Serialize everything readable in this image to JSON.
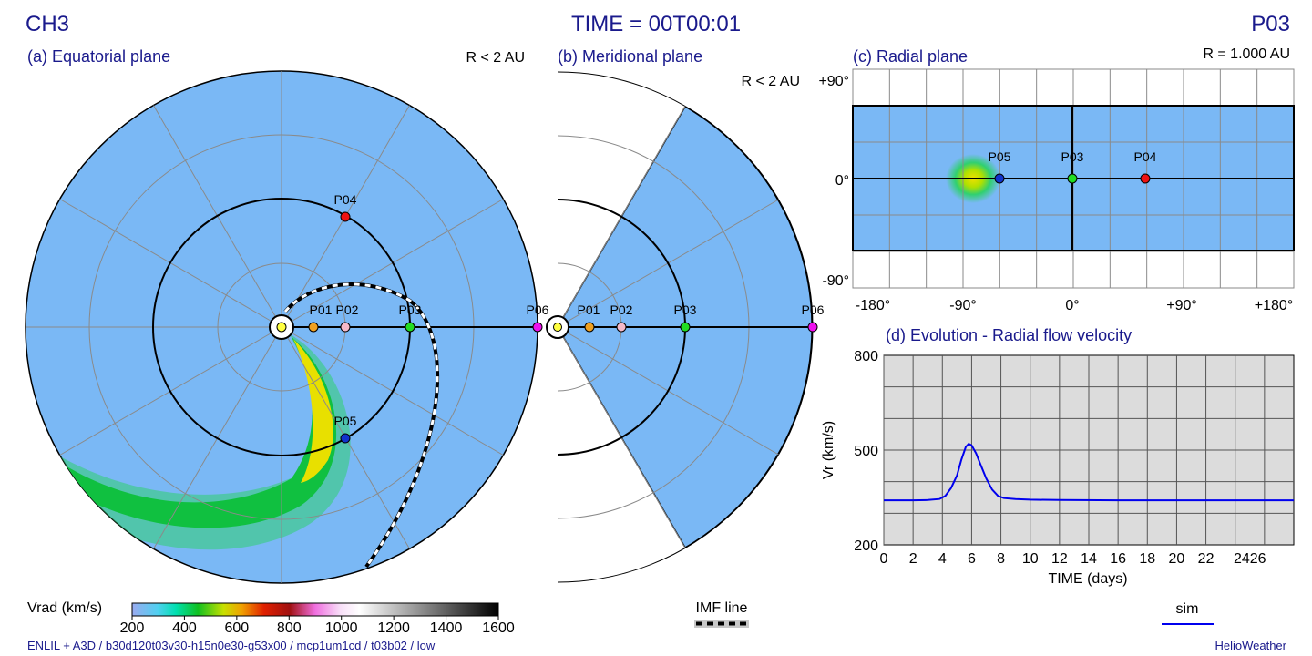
{
  "header": {
    "left_title": "CH3",
    "center_title": "TIME = 00T00:01",
    "right_title": "P03"
  },
  "panel_a": {
    "title": "(a) Equatorial plane",
    "range": "R < 2 AU",
    "probe_labels": [
      "P01",
      "P02",
      "P03",
      "P04",
      "P05",
      "P06"
    ]
  },
  "panel_b": {
    "title": "(b) Meridional plane",
    "range": "R < 2 AU",
    "probe_labels": [
      "P01",
      "P02",
      "P03",
      "P06"
    ]
  },
  "panel_c": {
    "title": "(c) Radial plane",
    "range": "R = 1.000 AU",
    "y_ticks": [
      "+90°",
      "0°",
      "-90°"
    ],
    "x_ticks": [
      "-180°",
      "-90°",
      "0°",
      "+90°",
      "+180°"
    ],
    "probe_labels": [
      "P05",
      "P03",
      "P04"
    ]
  },
  "panel_d": {
    "title": "(d) Evolution - Radial flow velocity",
    "ylabel": "Vr (km/s)",
    "xlabel": "TIME (days)",
    "y_ticks": [
      "800",
      "500",
      "200"
    ],
    "x_ticks": [
      "0",
      "2",
      "4",
      "6",
      "8",
      "10",
      "12",
      "14",
      "16",
      "18",
      "20",
      "22",
      "2426"
    ],
    "legend": "sim"
  },
  "colorbar": {
    "label": "Vrad (km/s)",
    "ticks": [
      "200",
      "400",
      "600",
      "800",
      "1000",
      "1200",
      "1400",
      "1600"
    ]
  },
  "imf_legend": "IMF line",
  "footer": {
    "run_info": "ENLIL + A3D / b30d120t03v30-h15n0e30-g53x00 / mcp1um1cd / t03b02 / low",
    "credit": "HelioWeather"
  },
  "colors": {
    "title": "#1a1a8c",
    "background_field": "#7ab8f5",
    "plot_bg": "#dcdcdc",
    "sim_line": "#0000ee",
    "probes": {
      "P01": "#f0a020",
      "P02": "#f5b8c8",
      "P03": "#22dd22",
      "P04": "#ee1111",
      "P05": "#1133cc",
      "P06": "#ee11ee"
    }
  },
  "chart_data": [
    {
      "type": "line",
      "title": "(d) Evolution - Radial flow velocity",
      "xlabel": "TIME (days)",
      "ylabel": "Vr (km/s)",
      "xlim": [
        0,
        28
      ],
      "ylim": [
        200,
        800
      ],
      "grid": true,
      "series": [
        {
          "name": "sim",
          "x": [
            0,
            2,
            3,
            3.8,
            4.2,
            4.6,
            5.0,
            5.3,
            5.6,
            5.8,
            6.0,
            6.3,
            6.6,
            7.0,
            7.4,
            7.8,
            8.2,
            9,
            10,
            12,
            16,
            20,
            24,
            28
          ],
          "y": [
            341,
            341,
            342,
            345,
            355,
            380,
            420,
            470,
            510,
            520,
            515,
            490,
            455,
            410,
            375,
            355,
            348,
            345,
            343,
            342,
            341,
            341,
            341,
            341
          ]
        }
      ]
    },
    {
      "type": "heatmap",
      "title": "Vrad (km/s)",
      "colorbar_range": [
        200,
        1600
      ],
      "colorbar_ticks": [
        200,
        400,
        600,
        800,
        1000,
        1200,
        1400,
        1600
      ]
    }
  ]
}
